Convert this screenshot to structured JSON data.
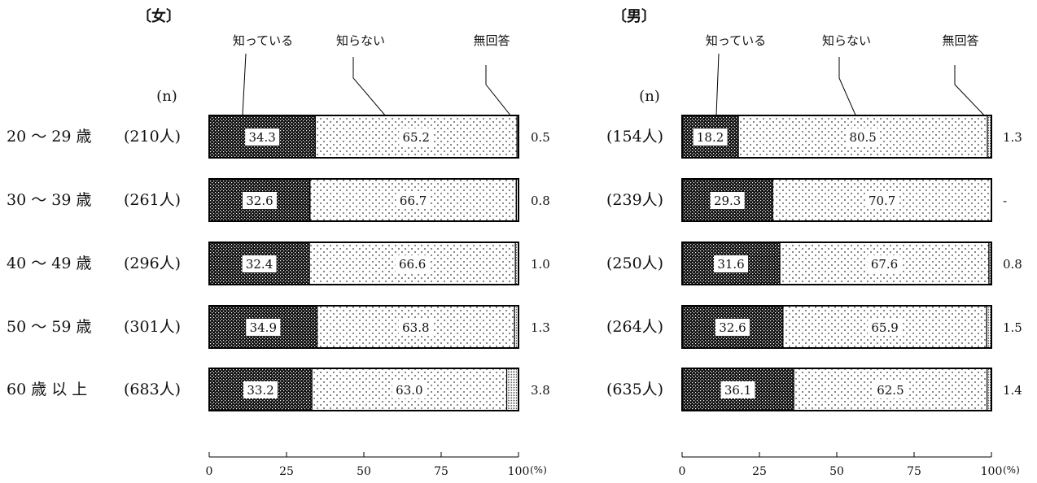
{
  "chart_data": [
    {
      "type": "bar",
      "orientation": "horizontal",
      "stacked": true,
      "title": "〔女〕",
      "n_header": "(n)",
      "legend": [
        "知っている",
        "知らない",
        "無回答"
      ],
      "categories": [
        "20 ～ 29 歳",
        "30 ～ 39 歳",
        "40 ～ 49 歳",
        "50 ～ 59 歳",
        "60 歳 以 上"
      ],
      "n_labels": [
        "(210人)",
        "(261人)",
        "(296人)",
        "(301人)",
        "(683人)"
      ],
      "series": [
        {
          "name": "知っている",
          "values": [
            34.3,
            32.6,
            32.4,
            34.9,
            33.2
          ]
        },
        {
          "name": "知らない",
          "values": [
            65.2,
            66.7,
            66.6,
            63.8,
            63.0
          ]
        },
        {
          "name": "無回答",
          "values": [
            0.5,
            0.8,
            1.0,
            1.3,
            3.8
          ]
        }
      ],
      "value_labels": {
        "知っている": [
          "34.3",
          "32.6",
          "32.4",
          "34.9",
          "33.2"
        ],
        "知らない": [
          "65.2",
          "66.7",
          "66.6",
          "63.8",
          "63.0"
        ],
        "無回答": [
          "0.5",
          "0.8",
          "1.0",
          "1.3",
          "3.8"
        ]
      },
      "xlim": [
        0,
        100
      ],
      "xticks": [
        "0",
        "25",
        "50",
        "75",
        "100"
      ],
      "x_unit": "(%)"
    },
    {
      "type": "bar",
      "orientation": "horizontal",
      "stacked": true,
      "title": "〔男〕",
      "n_header": "(n)",
      "legend": [
        "知っている",
        "知らない",
        "無回答"
      ],
      "categories": [
        "20 ～ 29 歳",
        "30 ～ 39 歳",
        "40 ～ 49 歳",
        "50 ～ 59 歳",
        "60 歳 以 上"
      ],
      "n_labels": [
        "(154人)",
        "(239人)",
        "(250人)",
        "(264人)",
        "(635人)"
      ],
      "series": [
        {
          "name": "知っている",
          "values": [
            18.2,
            29.3,
            31.6,
            32.6,
            36.1
          ]
        },
        {
          "name": "知らない",
          "values": [
            80.5,
            70.7,
            67.6,
            65.9,
            62.5
          ]
        },
        {
          "name": "無回答",
          "values": [
            1.3,
            0,
            0.8,
            1.5,
            1.4
          ]
        }
      ],
      "value_labels": {
        "知っている": [
          "18.2",
          "29.3",
          "31.6",
          "32.6",
          "36.1"
        ],
        "知らない": [
          "80.5",
          "70.7",
          "67.6",
          "65.9",
          "62.5"
        ],
        "無回答": [
          "1.3",
          "-",
          "0.8",
          "1.5",
          "1.4"
        ]
      },
      "xlim": [
        0,
        100
      ],
      "xticks": [
        "0",
        "25",
        "50",
        "75",
        "100"
      ],
      "x_unit": "(%)"
    }
  ]
}
